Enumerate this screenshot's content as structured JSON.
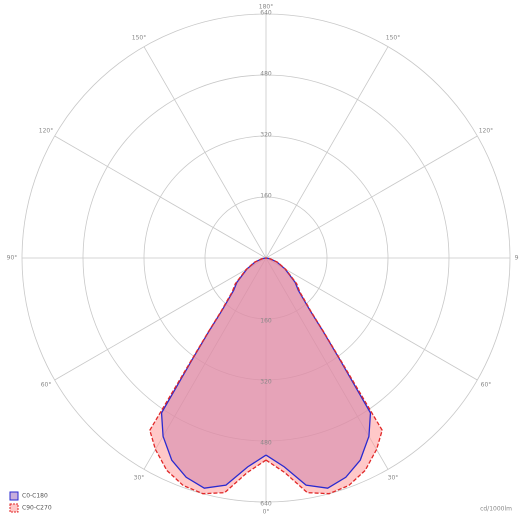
{
  "chart_data": {
    "type": "polar",
    "x": [
      0,
      5,
      10,
      15,
      20,
      25,
      30,
      34,
      36,
      38,
      40,
      45,
      50,
      60,
      70,
      80,
      90
    ],
    "series": [
      {
        "name": "C0-C180",
        "color": "#2a2ad0",
        "fill": "#9b6cc0",
        "dashed": false,
        "values": [
          517,
          550,
          605,
          625,
          612,
          585,
          540,
          490,
          330,
          240,
          180,
          120,
          100,
          58,
          30,
          10,
          0
        ]
      },
      {
        "name": "C90-C270",
        "color": "#e02828",
        "fill": "#ff9a9a",
        "dashed": true,
        "values": [
          530,
          565,
          625,
          640,
          635,
          615,
          580,
          545,
          340,
          245,
          185,
          125,
          105,
          60,
          32,
          10,
          0
        ]
      }
    ],
    "rlim": [
      0,
      640
    ],
    "rticks": [
      160,
      320,
      480,
      640
    ],
    "angle_ticks": [
      {
        "value": 0,
        "label": "0°"
      },
      {
        "value": 30,
        "label": "30°"
      },
      {
        "value": 60,
        "label": "60°"
      },
      {
        "value": 90,
        "label": "90°"
      },
      {
        "value": 120,
        "label": "120°"
      },
      {
        "value": 150,
        "label": "150°"
      },
      {
        "value": 180,
        "label": "180°"
      }
    ],
    "unit": "cd/1000lm",
    "legend": "bottom-left"
  }
}
